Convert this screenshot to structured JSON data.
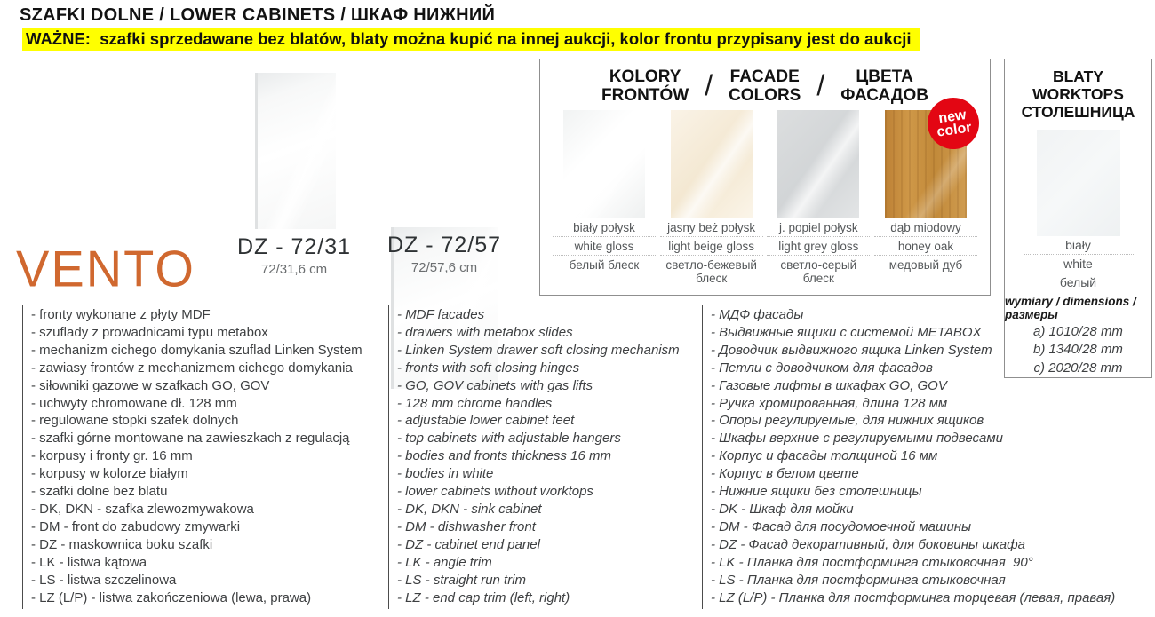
{
  "header": {
    "title": "SZAFKI DOLNE / LOWER CABINETS / ШКАФ НИЖНИЙ",
    "notice": "WAŻNE:  szafki sprzedawane bez blatów, blaty można kupić na innej aukcji, kolor frontu przypisany jest do aukcji",
    "notice_highlight_color": "#ffff00"
  },
  "brand": {
    "logo": "VENTO",
    "color": "#d0682f"
  },
  "products": [
    {
      "code": "DZ - 72/31",
      "size": "72/31,6 cm"
    },
    {
      "code": "DZ - 72/57",
      "size": "72/57,6 cm"
    }
  ],
  "facade_colors": {
    "header": {
      "pl_line1": "KOLORY",
      "pl_line2": "FRONTÓW",
      "en_line1": "FACADE",
      "en_line2": "COLORS",
      "ru_line1": "ЦВЕТА",
      "ru_line2": "ФАСАДОВ",
      "separator": "/"
    },
    "new_badge": {
      "line1": "new",
      "line2": "color",
      "color": "#e30613"
    },
    "swatches": [
      {
        "pl": "biały połysk",
        "en": "white gloss",
        "ru": "белый блеск",
        "hex": "#fafafa"
      },
      {
        "pl": "jasny beż połysk",
        "en": "light beige gloss",
        "ru": "светло-бежевый блеск",
        "hex": "#f3e7d0"
      },
      {
        "pl": "j. popiel połysk",
        "en": "light grey gloss",
        "ru": "светло-серый блеск",
        "hex": "#d5d7d9"
      },
      {
        "pl": "dąb miodowy",
        "en": "honey oak",
        "ru": "медовый дуб",
        "hex": "#c78e3f"
      }
    ]
  },
  "worktops": {
    "title_pl": "BLATY",
    "title_en": "WORKTOPS",
    "title_ru": "СТОЛЕШНИЦА",
    "color": {
      "pl": "biały",
      "en": "white",
      "ru": "белый",
      "hex": "#f3f5f6"
    },
    "dims_label": "wymiary / dimensions / размеры",
    "dims": [
      "a) 1010/28 mm",
      "b) 1340/28 mm",
      "c) 2020/28 mm"
    ]
  },
  "spec_lists": {
    "pl": {
      "items": [
        "- fronty wykonane z płyty MDF",
        "- szuflady z prowadnicami typu metabox",
        "- mechanizm cichego domykania szuflad Linken System",
        "- zawiasy frontów z mechanizmem cichego domykania",
        "- siłowniki gazowe w szafkach GO, GOV",
        "- uchwyty chromowane dł. 128 mm",
        "- regulowane stopki szafek dolnych",
        "- szafki górne montowane na zawieszkach z regulacją",
        "- korpusy i fronty gr. 16 mm",
        "- korpusy w kolorze białym",
        "- szafki dolne bez blatu",
        "- DK, DKN - szafka zlewozmywakowa",
        "- DM - front do zabudowy zmywarki",
        "- DZ - maskownica boku szafki",
        "- LK - listwa kątowa",
        "- LS - listwa szczelinowa",
        "- LZ (L/P) - listwa zakończeniowa (lewa, prawa)"
      ]
    },
    "en": {
      "items": [
        "- MDF facades",
        "- drawers with metabox slides",
        "- Linken System drawer soft closing mechanism",
        "- fronts with soft closing hinges",
        "- GO, GOV cabinets with gas lifts",
        "- 128 mm chrome handles",
        "- adjustable lower cabinet feet",
        "- top cabinets with adjustable hangers",
        "- bodies and fronts thickness 16 mm",
        "- bodies in white",
        "- lower cabinets without worktops",
        "- DK, DKN - sink cabinet",
        "- DM - dishwasher front",
        "- DZ - cabinet end panel",
        "- LK - angle trim",
        "- LS - straight run trim",
        "- LZ - end cap trim (left, right)"
      ]
    },
    "ru": {
      "items": [
        "- МДФ фасады",
        "- Выдвижные ящики с системой METABOX",
        "- Доводчик выдвижного ящика Linken System",
        "- Петли с доводчиком для фасадов",
        "- Газовые лифты в шкафах GO, GOV",
        "- Ручка хромированная, длина 128 мм",
        "- Опоры регулируемые, для нижних ящиков",
        "- Шкафы верхние с регулируемыми подвесами",
        "- Корпус и фасады толщиной 16 мм",
        "- Корпус в белом цвете",
        "- Нижние ящики без столешницы",
        "- DK - Шкаф для мойки",
        "- DM - Фасад для посудомоечной машины",
        "- DZ - Фасад декоративный, для боковины шкафа",
        "- LK - Планка для постформинга стыковочная  90°",
        "- LS - Планка для постформинга стыковочная",
        "- LZ (L/P) - Планка для постформинга торцевая (левая, правая)"
      ]
    }
  }
}
